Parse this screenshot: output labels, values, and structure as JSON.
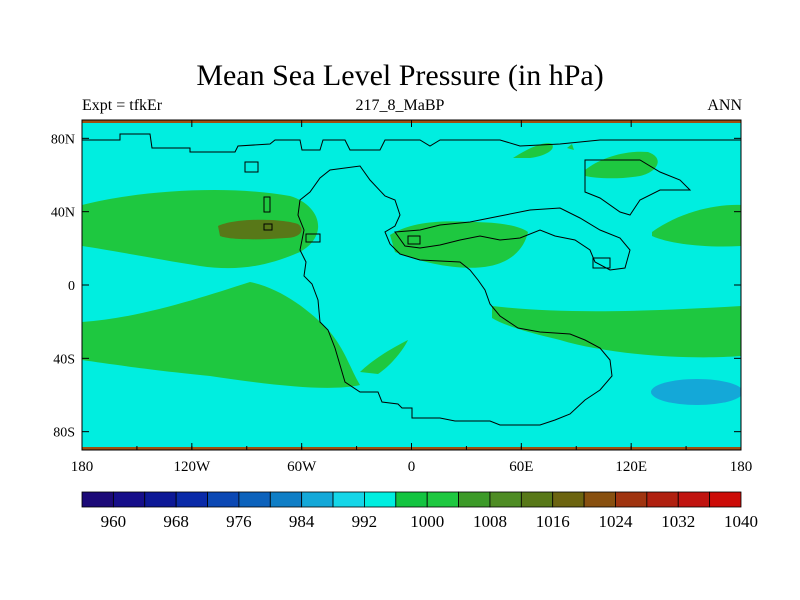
{
  "title": "Mean Sea Level Pressure (in hPa)",
  "subtitle_left": "Expt = tfkEr",
  "subtitle_center": "217_8_MaBP",
  "subtitle_right": "ANN",
  "lon_ticks": [
    "180",
    "120W",
    "60W",
    "0",
    "60E",
    "120E",
    "180"
  ],
  "lat_ticks": [
    "80N",
    "40N",
    "0",
    "40S",
    "80S"
  ],
  "colorbar": {
    "labels": [
      "960",
      "968",
      "976",
      "984",
      "992",
      "1000",
      "1008",
      "1016",
      "1024",
      "1032",
      "1040"
    ],
    "colors": [
      "#1c0a78",
      "#160e8a",
      "#0d1896",
      "#0a2aa8",
      "#0b48b4",
      "#0c62bc",
      "#0f7ec6",
      "#14a8d8",
      "#15d6e8",
      "#00eee0",
      "#13c440",
      "#1ec840",
      "#3c9a28",
      "#4e8c24",
      "#587818",
      "#6c6410",
      "#885010",
      "#a03410",
      "#b02010",
      "#c01410",
      "#cc0c08"
    ]
  },
  "map": {
    "background_color": "#00eee0",
    "colors": {
      "high_green": "#1ec840",
      "olive": "#587818",
      "low_blue": "#14a8d8",
      "border": "#a05010"
    }
  }
}
